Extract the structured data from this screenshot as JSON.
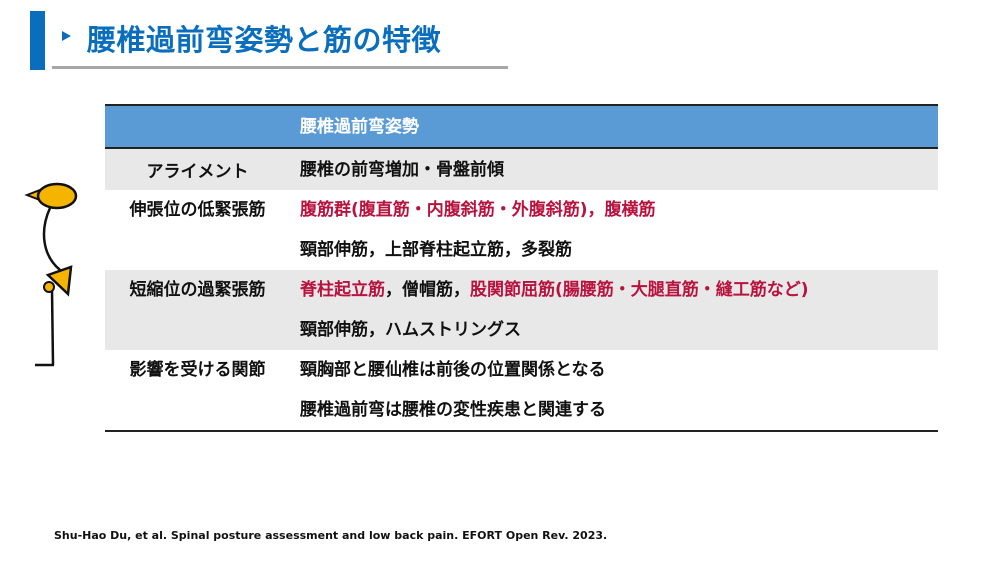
{
  "title": "腰椎過前弯姿勢と筋の特徴",
  "colors": {
    "accent": "#0a6ebd",
    "header": "#5b9bd5",
    "highlight": "#b8123e",
    "figure": "#f5b400"
  },
  "figure_icon": "posture-stick-figure",
  "table": {
    "header": "腰椎過前弯姿勢",
    "rows": [
      {
        "label": "アライメント",
        "lines": [
          [
            {
              "text": "腰椎の前弯増加・骨盤前傾",
              "red": false
            }
          ]
        ]
      },
      {
        "label": "伸張位の低緊張筋",
        "lines": [
          [
            {
              "text": "腹筋群(腹直筋・内腹斜筋・外腹斜筋)，腹横筋",
              "red": true
            }
          ],
          [
            {
              "text": "頸部伸筋，上部脊柱起立筋，多裂筋",
              "red": false
            }
          ]
        ]
      },
      {
        "label": "短縮位の過緊張筋",
        "lines": [
          [
            {
              "text": "脊柱起立筋",
              "red": true
            },
            {
              "text": "，僧帽筋，",
              "red": false
            },
            {
              "text": "股関節屈筋(腸腰筋・大腿直筋・縫工筋など)",
              "red": true
            }
          ],
          [
            {
              "text": "頸部伸筋，ハムストリングス",
              "red": false
            }
          ]
        ]
      },
      {
        "label": "影響を受ける関節",
        "lines": [
          [
            {
              "text": "頸胸部と腰仙椎は前後の位置関係となる",
              "red": false
            }
          ],
          [
            {
              "text": "腰椎過前弯は腰椎の変性疾患と関連する",
              "red": false
            }
          ]
        ]
      }
    ]
  },
  "citation": "Shu-Hao Du, et al. Spinal posture assessment and low back pain. EFORT Open Rev. 2023."
}
